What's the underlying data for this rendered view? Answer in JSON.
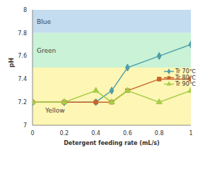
{
  "chart_data": {
    "type": "line",
    "x_label": "Detergent feeding rate (mL/s)",
    "y_label": "pH",
    "x": [
      0,
      0.2,
      0.4,
      0.5,
      0.6,
      0.8,
      1
    ],
    "series": [
      {
        "name": "Tr 70℃",
        "color": "#4f9fa9",
        "marker": "diamond",
        "values": [
          7.2,
          7.2,
          7.2,
          7.3,
          7.5,
          7.6,
          7.7
        ]
      },
      {
        "name": "Tr 80℃",
        "color": "#c8642c",
        "marker": "square",
        "values": [
          7.2,
          7.2,
          7.2,
          7.2,
          7.3,
          7.4,
          7.4
        ]
      },
      {
        "name": "Tr 90℃",
        "color": "#a8cc48",
        "marker": "triangle",
        "values": [
          7.2,
          7.2,
          7.3,
          7.2,
          7.3,
          7.2,
          7.3
        ]
      }
    ],
    "bands": [
      {
        "label": "Blue",
        "from": 7.8,
        "to": 8,
        "color": "#c3dcef"
      },
      {
        "label": "Green",
        "from": 7.5,
        "to": 7.8,
        "color": "#c9f2d6"
      },
      {
        "label": "Yellow",
        "from": 7,
        "to": 7.5,
        "color": "#fdf6b4"
      }
    ],
    "xlim": [
      0,
      1
    ],
    "xticks": [
      0,
      0.2,
      0.4,
      0.6,
      0.8,
      1
    ],
    "ylim": [
      7,
      8
    ],
    "yticks": [
      7,
      7.2,
      7.4,
      7.6,
      7.8,
      8
    ],
    "grid": false,
    "legend": "right"
  }
}
